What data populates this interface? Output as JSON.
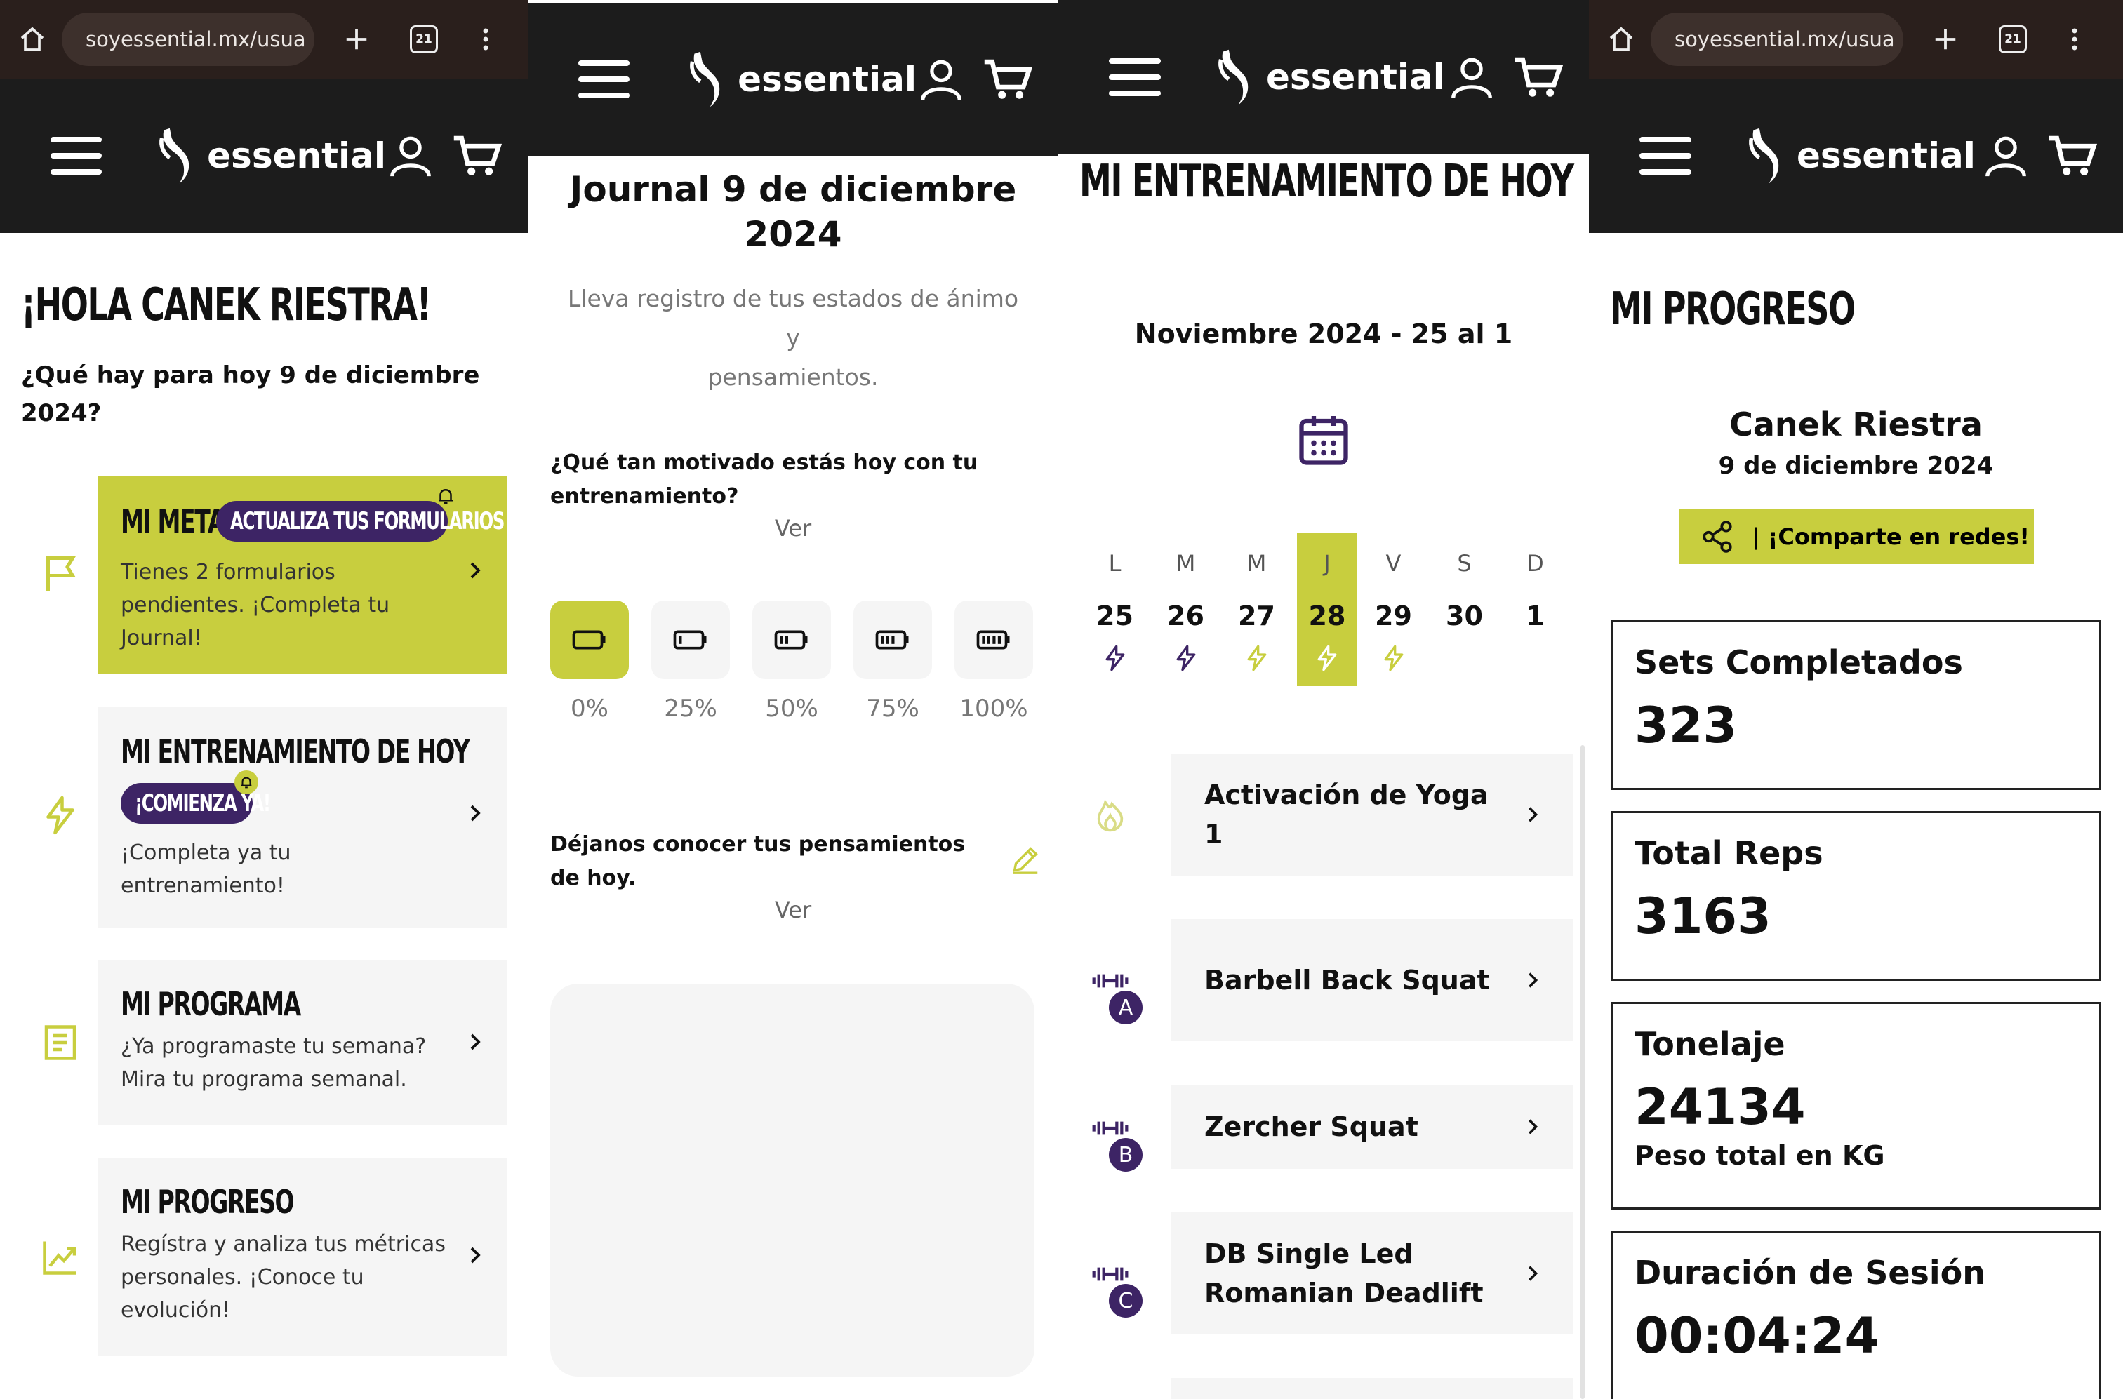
{
  "brand": {
    "name": "essential",
    "accent": "#c8ce3e",
    "dark": "#1c1c1c",
    "purple": "#3d2465"
  },
  "browser": {
    "url": "soyessential.mx/usua",
    "tab_count": "21"
  },
  "home": {
    "greeting": "¡HOLA CANEK RIESTRA!",
    "question": "¿Qué hay para hoy 9 de diciembre 2024?",
    "cards": {
      "meta": {
        "title": "MI META",
        "pill": "ACTUALIZA TUS FORMULARIOS",
        "desc": "Tienes 2 formularios pendientes. ¡Completa tu Journal!"
      },
      "entrenamiento": {
        "title": "MI ENTRENAMIENTO DE HOY",
        "pill": "¡COMIENZA YA!",
        "desc": "¡Completa ya tu entrenamiento!"
      },
      "programa": {
        "title": "MI PROGRAMA",
        "desc": "¿Ya programaste tu semana? Mira tu programa semanal."
      },
      "progreso": {
        "title": "MI PROGRESO",
        "desc": "Regístra y analiza tus métricas personales. ¡Conoce tu evolución!"
      }
    }
  },
  "journal": {
    "title": "Journal 9 de diciembre 2024",
    "subtitle_line1": "Lleva registro de tus estados de ánimo",
    "subtitle_line2": "y",
    "subtitle_line3": "pensamientos.",
    "q1": "¿Qué tan motivado estás hoy con tu entrenamiento?",
    "ver": "Ver",
    "moods": [
      "0%",
      "25%",
      "50%",
      "75%",
      "100%"
    ],
    "selected_mood": "0%",
    "q2": "Déjanos conocer tus pensamientos de hoy.",
    "thoughts_value": ""
  },
  "training": {
    "title": "MI ENTRENAMIENTO DE HOY",
    "week_label": "Noviembre 2024 - 25 al 1",
    "days": [
      {
        "letter": "L",
        "num": "25",
        "bolt": "purple"
      },
      {
        "letter": "M",
        "num": "26",
        "bolt": "purple"
      },
      {
        "letter": "M",
        "num": "27",
        "bolt": "olive"
      },
      {
        "letter": "J",
        "num": "28",
        "bolt": "white"
      },
      {
        "letter": "V",
        "num": "29",
        "bolt": "olive"
      },
      {
        "letter": "S",
        "num": "30",
        "bolt": ""
      },
      {
        "letter": "D",
        "num": "1",
        "bolt": ""
      }
    ],
    "selected_day": "28",
    "exercises": [
      {
        "name": "Activación de Yoga 1",
        "icon": "flame-icon",
        "badge": ""
      },
      {
        "name": "Barbell Back Squat",
        "icon": "dumbbell-icon",
        "badge": "A"
      },
      {
        "name": "Zercher Squat",
        "icon": "dumbbell-icon",
        "badge": "B"
      },
      {
        "name": "DB Single Led Romanian Deadlift",
        "icon": "dumbbell-icon",
        "badge": "C"
      }
    ]
  },
  "progress": {
    "title": "MI PROGRESO",
    "name": "Canek Riestra",
    "date": "9 de diciembre 2024",
    "share": "| ¡Comparte en redes!",
    "stats": [
      {
        "label": "Sets Completados",
        "value": "323",
        "sub": ""
      },
      {
        "label": "Total Reps",
        "value": "3163",
        "sub": ""
      },
      {
        "label": "Tonelaje",
        "value": "24134",
        "sub": "Peso total en KG"
      },
      {
        "label": "Duración de Sesión",
        "value": "00:04:24",
        "sub": ""
      }
    ]
  }
}
